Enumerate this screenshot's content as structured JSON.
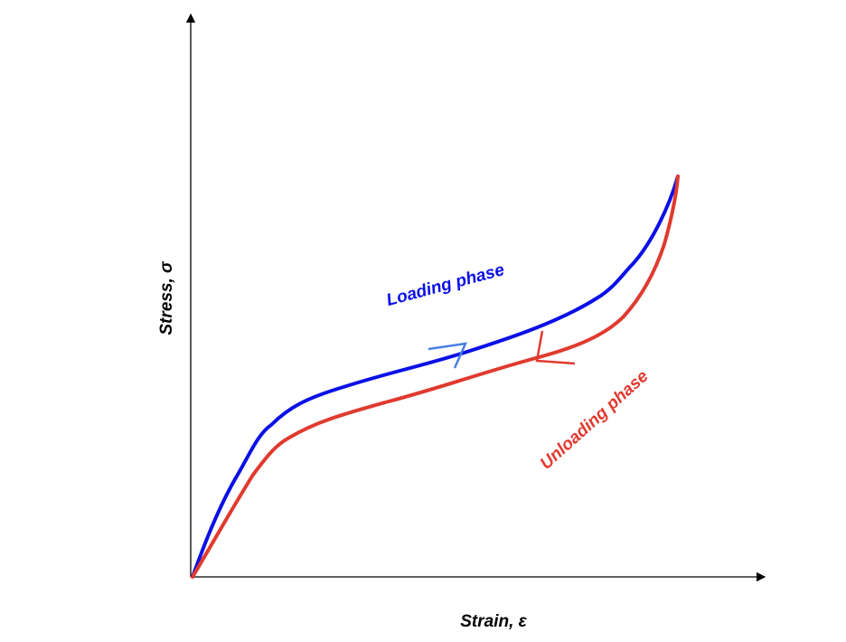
{
  "axes": {
    "y_label": "Stress, σ",
    "x_label": "Strain, ε"
  },
  "curves": {
    "loading": "Loading phase",
    "unloading": "Unloading phase"
  }
}
